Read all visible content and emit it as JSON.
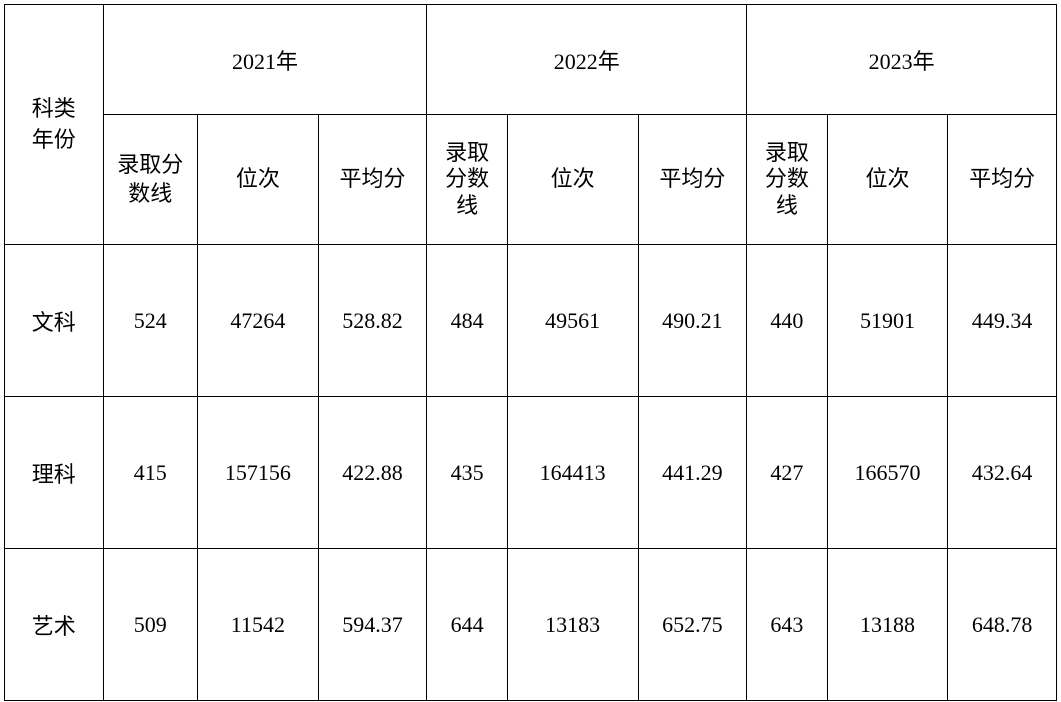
{
  "colors": {
    "background": "#ffffff",
    "border": "#000000",
    "text": "#000000"
  },
  "typography": {
    "header_fontsize_pt": 16,
    "cell_fontsize_pt": 16,
    "font_family": "SimSun"
  },
  "table": {
    "type": "table",
    "corner_label": "科类\n年份",
    "year_groups": [
      "2021年",
      "2022年",
      "2023年"
    ],
    "sub_headers": {
      "score_line": "录取分数线",
      "score_line_stacked": "录取\n分数\n线",
      "rank": "位次",
      "average": "平均分"
    },
    "rows": [
      {
        "label": "文科",
        "y2021": {
          "score_line": "524",
          "rank": "47264",
          "average": "528.82"
        },
        "y2022": {
          "score_line": "484",
          "rank": "49561",
          "average": "490.21"
        },
        "y2023": {
          "score_line": "440",
          "rank": "51901",
          "average": "449.34"
        }
      },
      {
        "label": "理科",
        "y2021": {
          "score_line": "415",
          "rank": "157156",
          "average": "422.88"
        },
        "y2022": {
          "score_line": "435",
          "rank": "164413",
          "average": "441.29"
        },
        "y2023": {
          "score_line": "427",
          "rank": "166570",
          "average": "432.64"
        }
      },
      {
        "label": "艺术",
        "y2021": {
          "score_line": "509",
          "rank": "11542",
          "average": "594.37"
        },
        "y2022": {
          "score_line": "644",
          "rank": "13183",
          "average": "652.75"
        },
        "y2023": {
          "score_line": "643",
          "rank": "13188",
          "average": "648.78"
        }
      }
    ]
  }
}
